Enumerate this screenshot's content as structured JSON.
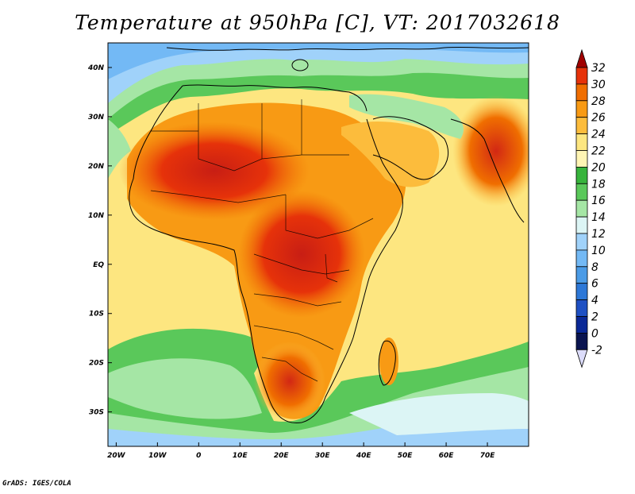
{
  "title": "Temperature at 950hPa [C], VT: 2017032618",
  "footer": "GrADS: IGES/COLA",
  "map": {
    "variable": "Temperature",
    "level": "950hPa",
    "units": "C",
    "valid_time": "2017032618",
    "region": "Africa",
    "lon_range": [
      -22,
      80
    ],
    "lat_range": [
      -37,
      45
    ],
    "x_ticks": [
      {
        "label": "20W",
        "lon": -20
      },
      {
        "label": "10W",
        "lon": -10
      },
      {
        "label": "0",
        "lon": 0
      },
      {
        "label": "10E",
        "lon": 10
      },
      {
        "label": "20E",
        "lon": 20
      },
      {
        "label": "30E",
        "lon": 30
      },
      {
        "label": "40E",
        "lon": 40
      },
      {
        "label": "50E",
        "lon": 50
      },
      {
        "label": "60E",
        "lon": 60
      },
      {
        "label": "70E",
        "lon": 70
      }
    ],
    "y_ticks": [
      {
        "label": "40N",
        "lat": 40
      },
      {
        "label": "30N",
        "lat": 30
      },
      {
        "label": "20N",
        "lat": 20
      },
      {
        "label": "10N",
        "lat": 10
      },
      {
        "label": "EQ",
        "lat": 0
      },
      {
        "label": "10S",
        "lat": -10
      },
      {
        "label": "20S",
        "lat": -20
      },
      {
        "label": "30S",
        "lat": -30
      }
    ]
  },
  "colorbar": {
    "levels": [
      {
        "label": "32",
        "value": 32,
        "color": "#a00000"
      },
      {
        "label": "30",
        "value": 30,
        "color": "#e6320a"
      },
      {
        "label": "28",
        "value": 28,
        "color": "#f06e00"
      },
      {
        "label": "26",
        "value": 26,
        "color": "#f89a14"
      },
      {
        "label": "24",
        "value": 24,
        "color": "#fcbc3c"
      },
      {
        "label": "22",
        "value": 22,
        "color": "#fde680"
      },
      {
        "label": "20",
        "value": 20,
        "color": "#fff5b4"
      },
      {
        "label": "18",
        "value": 18,
        "color": "#37b43c"
      },
      {
        "label": "16",
        "value": 16,
        "color": "#5ac85a"
      },
      {
        "label": "14",
        "value": 14,
        "color": "#a5e6a5"
      },
      {
        "label": "12",
        "value": 12,
        "color": "#dcf5f5"
      },
      {
        "label": "10",
        "value": 10,
        "color": "#a0d2fa"
      },
      {
        "label": "8",
        "value": 8,
        "color": "#73b9f5"
      },
      {
        "label": "6",
        "value": 6,
        "color": "#4b9be6"
      },
      {
        "label": "4",
        "value": 4,
        "color": "#2d78d7"
      },
      {
        "label": "2",
        "value": 2,
        "color": "#1e50c3"
      },
      {
        "label": "0",
        "value": 0,
        "color": "#0a2896"
      },
      {
        "label": "-2",
        "value": -2,
        "color": "#0a1450"
      }
    ],
    "top_color": "#a00000",
    "bottom_color": "#dcdcfa"
  }
}
